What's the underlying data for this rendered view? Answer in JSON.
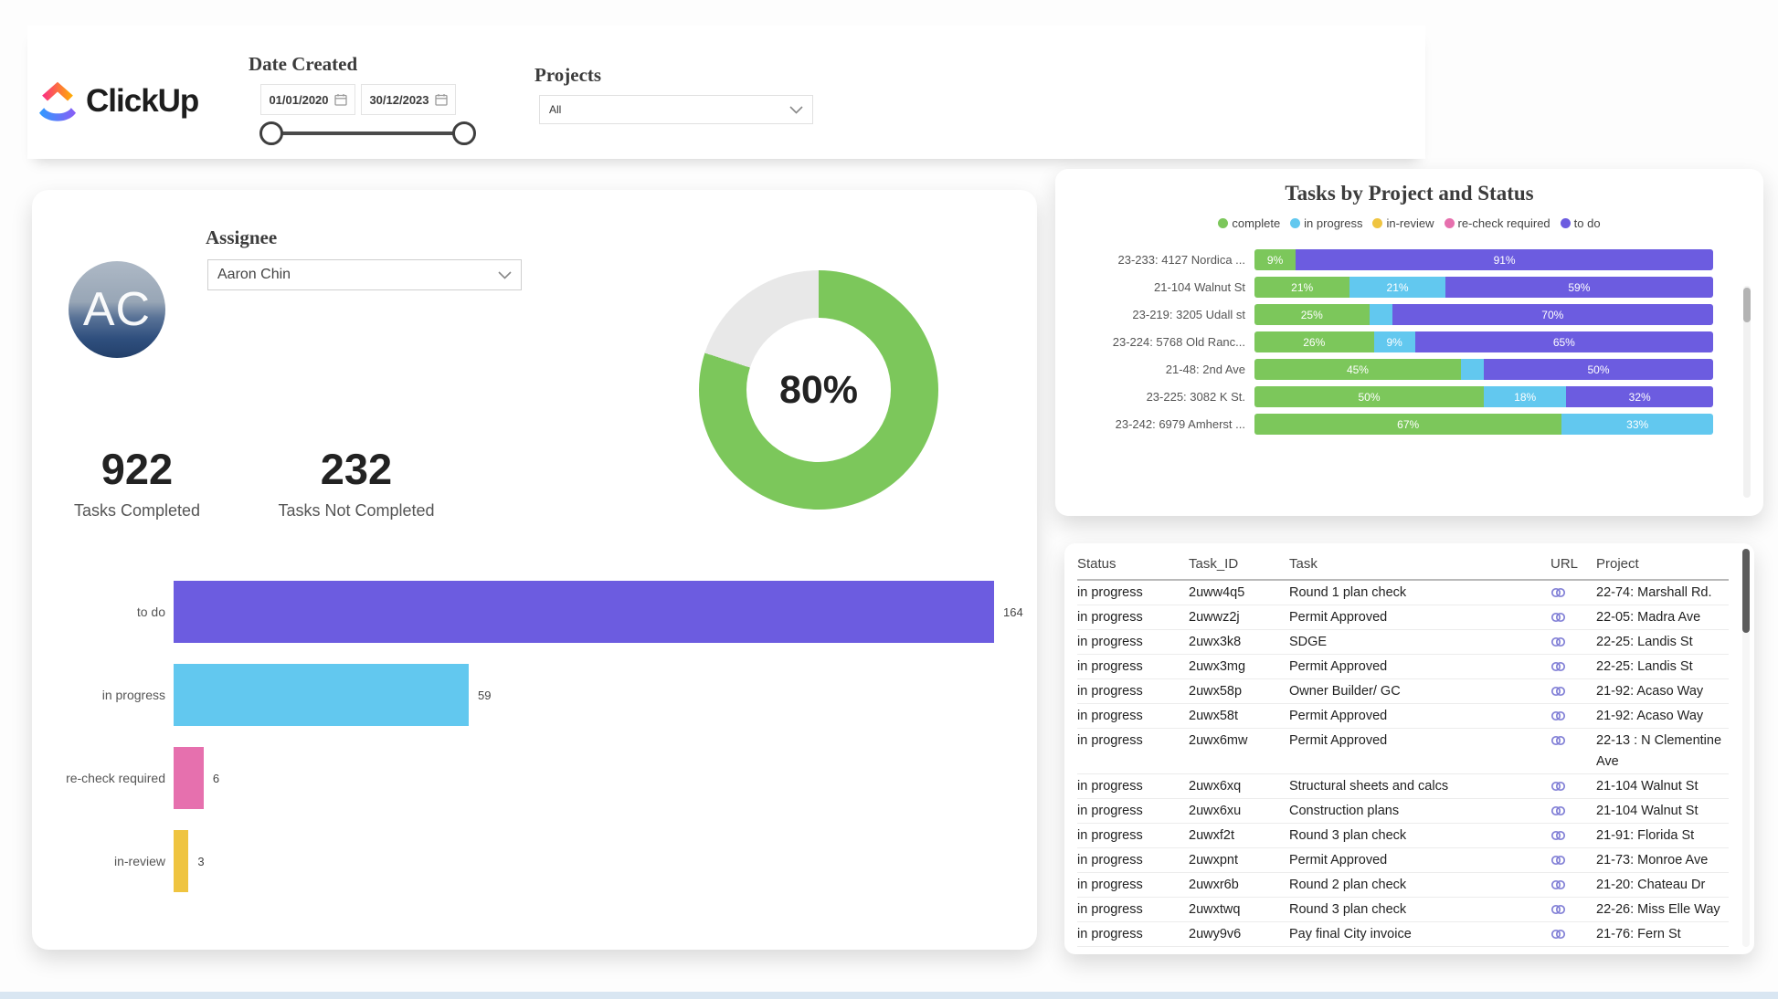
{
  "page": {
    "bottom_strip_color": "#d9e6f2"
  },
  "header": {
    "logo_text": "ClickUp",
    "date_created": {
      "label": "Date Created",
      "start_value": "01/01/2020",
      "end_value": "30/12/2023"
    },
    "projects": {
      "label": "Projects",
      "selected": "All"
    }
  },
  "status_colors": {
    "complete": "#7CC75B",
    "in progress": "#62C8EF",
    "in-review": "#EFC440",
    "re-check required": "#E670AE",
    "to do": "#6C5CE0"
  },
  "assignee_card": {
    "label": "Assignee",
    "selected": "Aaron Chin",
    "avatar_initials": "AC",
    "stats": [
      {
        "value": "922",
        "label": "Tasks Completed"
      },
      {
        "value": "232",
        "label": "Tasks Not Completed"
      }
    ]
  },
  "chart_data": [
    {
      "type": "donut",
      "center_label": "80%",
      "values": [
        {
          "name": "complete",
          "value": 80,
          "color": "#7CC75B"
        },
        {
          "name": "remaining",
          "value": 20,
          "color": "#E8E8E8"
        }
      ],
      "legend_position": "none"
    },
    {
      "type": "bar",
      "orientation": "horizontal",
      "categories": [
        "to do",
        "in progress",
        "re-check required",
        "in-review"
      ],
      "values": [
        164,
        59,
        6,
        3
      ],
      "data_labels": [
        "164",
        "59",
        "6",
        "3"
      ],
      "xlim": [
        0,
        170
      ],
      "grid": false
    },
    {
      "type": "stacked-bar",
      "title": "Tasks by Project and Status",
      "legend": [
        "complete",
        "in progress",
        "in-review",
        "re-check required",
        "to do"
      ],
      "legend_position": "top",
      "unit": "percent",
      "categories": [
        "23-233: 4127 Nordica ...",
        "21-104 Walnut St",
        "23-219: 3205 Udall st",
        "23-224: 5768 Old Ranc...",
        "21-48: 2nd Ave",
        "23-225: 3082 K St.",
        "23-242: 6979 Amherst ..."
      ],
      "rows": [
        [
          {
            "status": "complete",
            "pct": 9,
            "label": "9%"
          },
          {
            "status": "to do",
            "pct": 91,
            "label": "91%"
          }
        ],
        [
          {
            "status": "complete",
            "pct": 21,
            "label": "21%"
          },
          {
            "status": "in progress",
            "pct": 21,
            "label": "21%"
          },
          {
            "status": "to do",
            "pct": 59,
            "label": "59%"
          }
        ],
        [
          {
            "status": "complete",
            "pct": 25,
            "label": "25%"
          },
          {
            "status": "in progress",
            "pct": 5,
            "label": ""
          },
          {
            "status": "to do",
            "pct": 70,
            "label": "70%"
          }
        ],
        [
          {
            "status": "complete",
            "pct": 26,
            "label": "26%"
          },
          {
            "status": "in progress",
            "pct": 9,
            "label": "9%"
          },
          {
            "status": "to do",
            "pct": 65,
            "label": "65%"
          }
        ],
        [
          {
            "status": "complete",
            "pct": 45,
            "label": "45%"
          },
          {
            "status": "in progress",
            "pct": 5,
            "label": ""
          },
          {
            "status": "to do",
            "pct": 50,
            "label": "50%"
          }
        ],
        [
          {
            "status": "complete",
            "pct": 50,
            "label": "50%"
          },
          {
            "status": "in progress",
            "pct": 18,
            "label": "18%"
          },
          {
            "status": "to do",
            "pct": 32,
            "label": "32%"
          }
        ],
        [
          {
            "status": "complete",
            "pct": 67,
            "label": "67%"
          },
          {
            "status": "in progress",
            "pct": 33,
            "label": "33%"
          }
        ]
      ]
    }
  ],
  "table": {
    "columns": [
      "Status",
      "Task_ID",
      "Task",
      "URL",
      "Project"
    ],
    "link_icon": "chain-link-icon",
    "rows": [
      [
        "in progress",
        "2uww4q5",
        "Round 1 plan check",
        "22-74: Marshall Rd."
      ],
      [
        "in progress",
        "2uwwz2j",
        "Permit Approved",
        "22-05: Madra Ave"
      ],
      [
        "in progress",
        "2uwx3k8",
        "SDGE",
        "22-25: Landis St"
      ],
      [
        "in progress",
        "2uwx3mg",
        "Permit Approved",
        "22-25: Landis St"
      ],
      [
        "in progress",
        "2uwx58p",
        "Owner Builder/ GC",
        "21-92: Acaso Way"
      ],
      [
        "in progress",
        "2uwx58t",
        "Permit Approved",
        "21-92: Acaso Way"
      ],
      [
        "in progress",
        "2uwx6mw",
        "Permit Approved",
        "22-13 : N Clementine Ave"
      ],
      [
        "in progress",
        "2uwx6xq",
        "Structural sheets and calcs",
        "21-104 Walnut St"
      ],
      [
        "in progress",
        "2uwx6xu",
        "Construction plans",
        "21-104 Walnut St"
      ],
      [
        "in progress",
        "2uwxf2t",
        "Round 3 plan check",
        "21-91: Florida St"
      ],
      [
        "in progress",
        "2uwxpnt",
        "Permit Approved",
        "21-73: Monroe Ave"
      ],
      [
        "in progress",
        "2uwxr6b",
        "Round 2 plan check",
        "21-20: Chateau Dr"
      ],
      [
        "in progress",
        "2uwxtwq",
        "Round 3 plan check",
        "22-26: Miss Elle Way"
      ],
      [
        "in progress",
        "2uwy9v6",
        "Pay final City invoice",
        "21-76: Fern St"
      ]
    ]
  }
}
